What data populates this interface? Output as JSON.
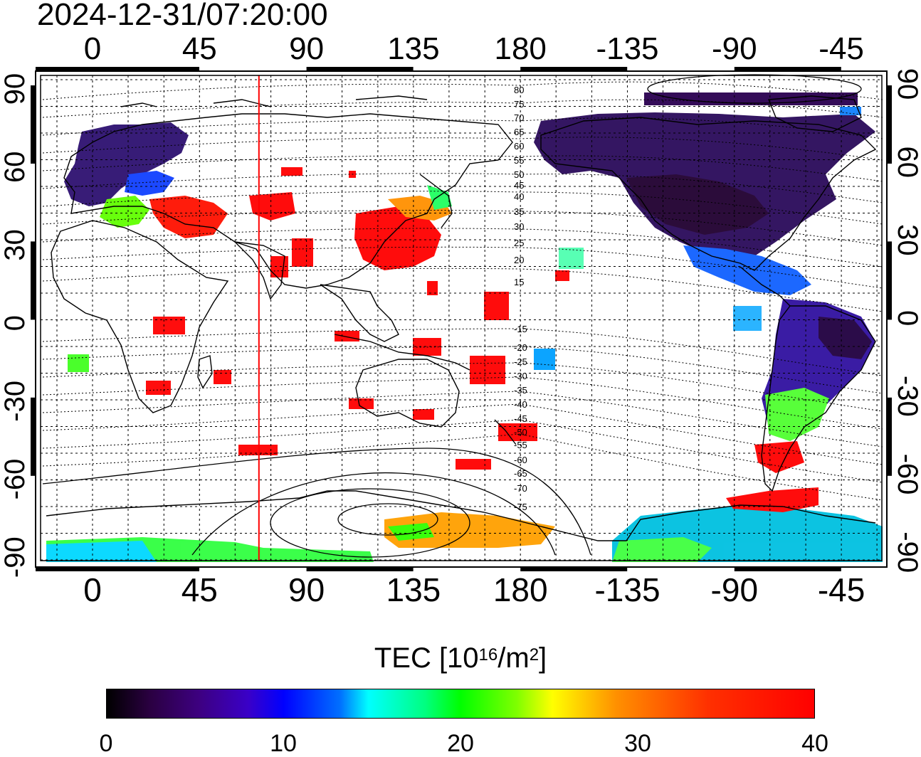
{
  "title": "2024-12-31/07:20:00",
  "map": {
    "top_axis_labels": [
      "0",
      "45",
      "90",
      "135",
      "180",
      "-135",
      "-90",
      "-45"
    ],
    "bottom_axis_labels": [
      "0",
      "45",
      "90",
      "135",
      "180",
      "-135",
      "-90",
      "-45"
    ],
    "left_axis_labels": [
      "90",
      "60",
      "30",
      "0",
      "-30",
      "-60",
      "-90"
    ],
    "right_axis_labels": [
      "90",
      "60",
      "30",
      "0",
      "-30",
      "-60",
      "-90"
    ],
    "contour_labels": [
      "80",
      "75",
      "70",
      "65",
      "60",
      "55",
      "50",
      "45",
      "40",
      "35",
      "30",
      "25",
      "20",
      "15",
      "-15",
      "-20",
      "-25",
      "-30",
      "-35",
      "-40",
      "-45",
      "-50",
      "-55",
      "-60",
      "-65",
      "-70",
      "-75"
    ],
    "highlight_line_color": "#ff0000",
    "highlight_line_longitude": 70
  },
  "colorbar": {
    "title_prefix": "TEC  [10",
    "title_sup1": "16",
    "title_mid": "/m",
    "title_sup2": "2",
    "title_suffix": "]",
    "ticks": [
      "0",
      "10",
      "20",
      "30",
      "40"
    ],
    "range": [
      0,
      40
    ]
  }
}
